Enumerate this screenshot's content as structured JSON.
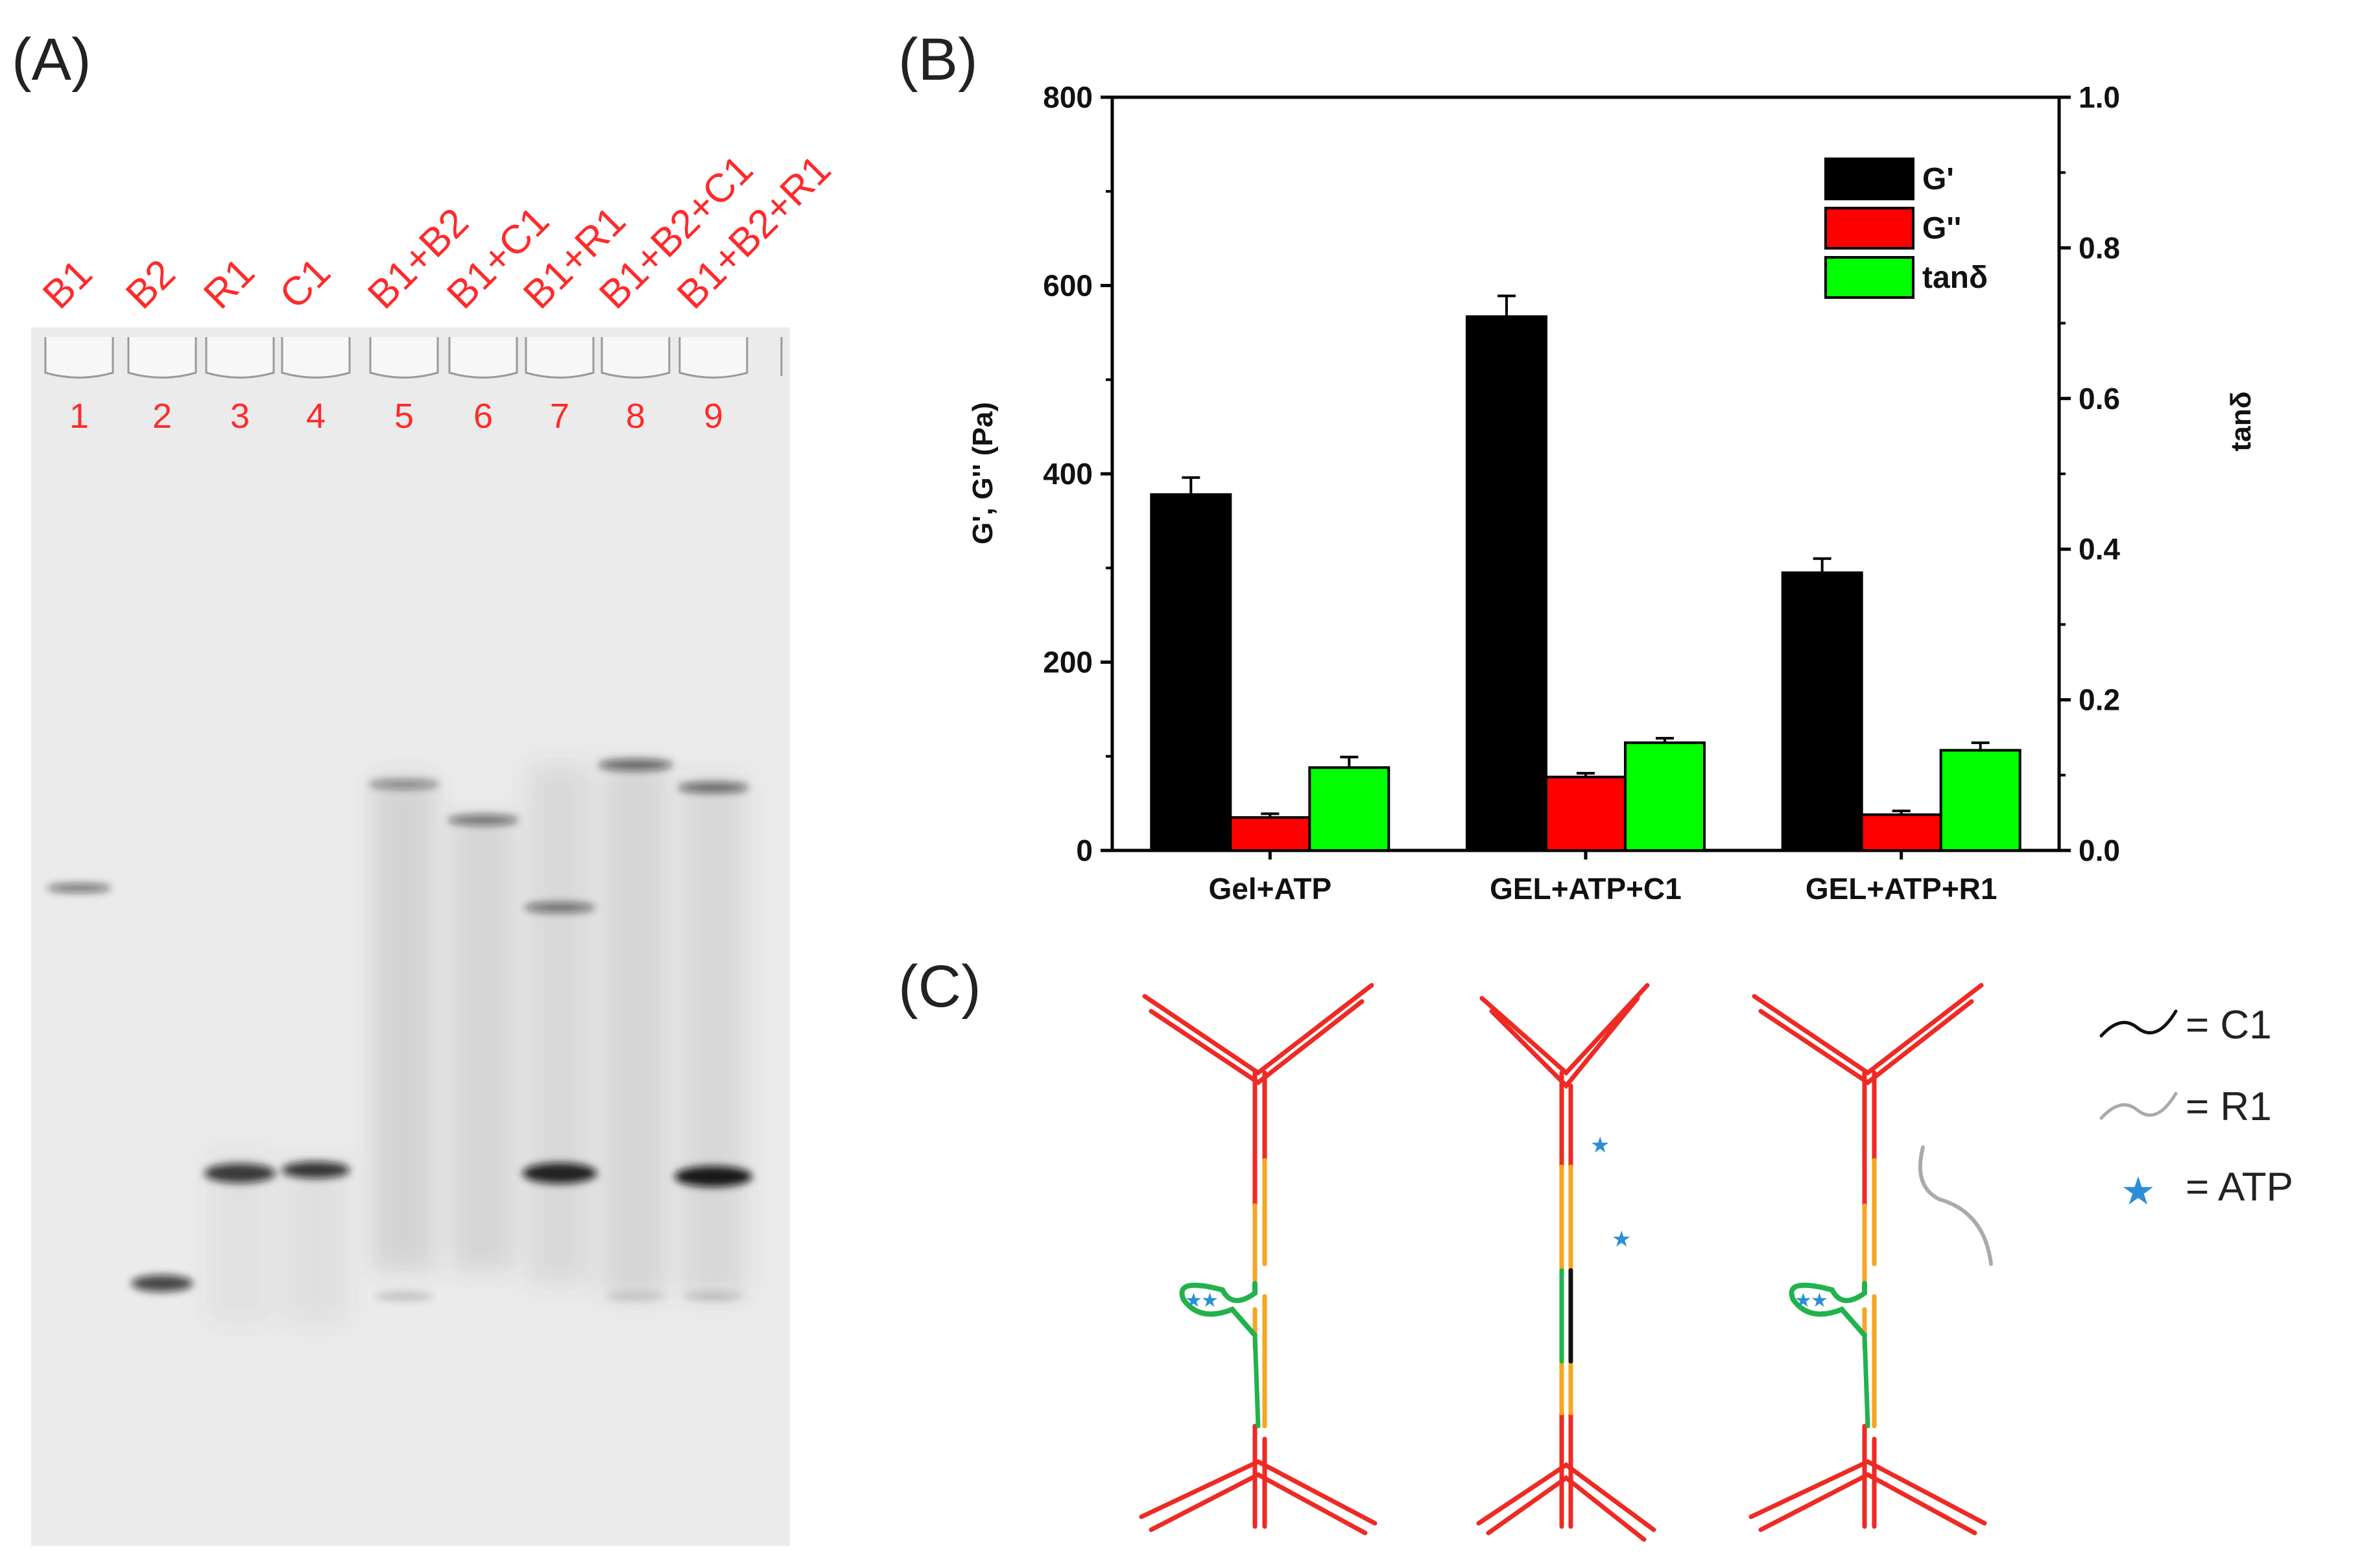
{
  "panels": {
    "a_label": "(A)",
    "b_label": "(B)",
    "c_label": "(C)"
  },
  "gel": {
    "lanes": [
      {
        "name": "B1",
        "number": "1"
      },
      {
        "name": "B2",
        "number": "2"
      },
      {
        "name": "R1",
        "number": "3"
      },
      {
        "name": "C1",
        "number": "4"
      },
      {
        "name": "B1+B2",
        "number": "5"
      },
      {
        "name": "B1+C1",
        "number": "6"
      },
      {
        "name": "B1+R1",
        "number": "7"
      },
      {
        "name": "B1+B2+C1",
        "number": "8"
      },
      {
        "name": "B1+B2+R1",
        "number": "9"
      }
    ],
    "label_color": "#ff2a2a",
    "background_color": "#ebebeb"
  },
  "chart_data": {
    "type": "bar",
    "categories": [
      "Gel+ATP",
      "GEL+ATP+C1",
      "GEL+ATP+R1"
    ],
    "series": [
      {
        "name": "G'",
        "axis": "left",
        "color": "#000000",
        "values": [
          378,
          567,
          295
        ],
        "errors": [
          18,
          22,
          15
        ]
      },
      {
        "name": "G''",
        "axis": "left",
        "color": "#ff0000",
        "values": [
          35,
          78,
          38
        ],
        "errors": [
          4,
          4,
          4
        ]
      },
      {
        "name": "tanδ",
        "axis": "right",
        "color": "#00ff00",
        "values": [
          0.11,
          0.143,
          0.133
        ],
        "errors": [
          0.014,
          0.006,
          0.01
        ]
      }
    ],
    "ylabel": "G', G'' (Pa)",
    "y2label": "tanδ",
    "ylim": [
      0,
      800
    ],
    "y2lim": [
      0,
      1.0
    ],
    "yticks": [
      "0",
      "200",
      "400",
      "600",
      "800"
    ],
    "y2ticks": [
      "0.0",
      "0.2",
      "0.4",
      "0.6",
      "0.8",
      "1.0"
    ],
    "legend_position": "top-right",
    "grid": false
  },
  "schematic": {
    "legend": [
      {
        "label": "= C1",
        "icon": "black-wave-icon"
      },
      {
        "label": "= R1",
        "icon": "gray-wave-icon"
      },
      {
        "label": "= ATP",
        "icon": "blue-star-icon"
      }
    ],
    "colors": {
      "strand": "#ee2a24",
      "linker": "#f5a623",
      "aptamer": "#22b24c",
      "atp": "#2c8fd6",
      "c1": "#111111",
      "r1": "#aaaaaa"
    }
  }
}
